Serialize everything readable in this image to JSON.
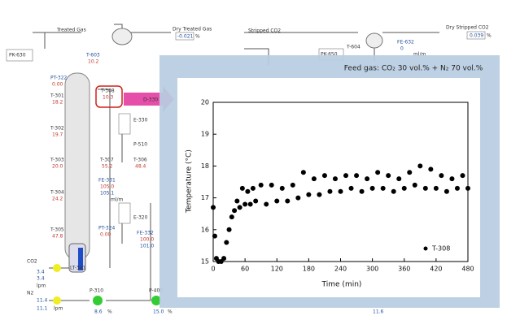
{
  "chart_data": {
    "type": "scatter",
    "title": "Feed gas: CO₂ 30 vol.% + N₂ 70 vol.%",
    "x_label": "Time (min)",
    "y_label": "Temperature (°C)",
    "xlim": [
      0,
      480
    ],
    "xticks": [
      0,
      60,
      120,
      180,
      240,
      300,
      360,
      420,
      480
    ],
    "ylim": [
      15,
      20
    ],
    "yticks": [
      15,
      16,
      17,
      18,
      19,
      20
    ],
    "legend": "lower right",
    "series": [
      {
        "name": "T-308",
        "color": "#000000",
        "x": [
          0,
          3,
          6,
          10,
          15,
          20,
          25,
          30,
          35,
          40,
          45,
          50,
          55,
          60,
          65,
          70,
          75,
          80,
          90,
          100,
          110,
          120,
          130,
          140,
          150,
          160,
          170,
          180,
          190,
          200,
          210,
          220,
          230,
          240,
          250,
          260,
          270,
          280,
          290,
          300,
          310,
          320,
          330,
          340,
          350,
          360,
          370,
          380,
          390,
          400,
          410,
          420,
          430,
          440,
          450,
          460,
          470,
          480
        ],
        "values": [
          16.7,
          15.8,
          15.1,
          15.0,
          15.0,
          15.1,
          15.6,
          16.0,
          16.4,
          16.6,
          16.9,
          16.7,
          17.3,
          16.8,
          17.2,
          16.8,
          17.3,
          16.9,
          17.4,
          16.8,
          17.4,
          16.9,
          17.3,
          16.9,
          17.4,
          17.0,
          17.8,
          17.1,
          17.6,
          17.1,
          17.7,
          17.2,
          17.6,
          17.2,
          17.7,
          17.3,
          17.7,
          17.2,
          17.6,
          17.3,
          17.8,
          17.3,
          17.7,
          17.2,
          17.6,
          17.3,
          17.8,
          17.4,
          18.0,
          17.3,
          17.9,
          17.3,
          17.7,
          17.2,
          17.6,
          17.3,
          17.7,
          17.3
        ]
      }
    ]
  },
  "diagram": {
    "labels": [
      "Treated Gas",
      "Dry Treated Gas",
      "-0.021",
      "%",
      "PK-630",
      "T-603",
      "10.2",
      "PT-322",
      "0.00",
      "T-301",
      "18.2",
      "T-302",
      "19.7",
      "T-303",
      "20.0",
      "T-304",
      "24.2",
      "T-305",
      "47.8",
      "T-308",
      "10.3",
      "D-330",
      "E-330",
      "P-510",
      "T-307",
      "55.2",
      "T-306",
      "48.4",
      "FE-331",
      "105.0",
      "105.1",
      "ml/m",
      "PT-324",
      "0.00",
      "E-320",
      "FE-332",
      "100.0",
      "101.0",
      "LT-341",
      "CO2",
      "3.4",
      "3.4",
      "lpm",
      "N2",
      "11.4",
      "11.1",
      "lpm",
      "P-310",
      "8.6",
      "%",
      "P-400",
      "15.0",
      "%",
      "Stripped CO2",
      "Dry Stripped CO2",
      "0.039",
      "%",
      "PK-650",
      "T-604",
      "FE-632",
      "0",
      "ml/m",
      "11.6"
    ]
  }
}
